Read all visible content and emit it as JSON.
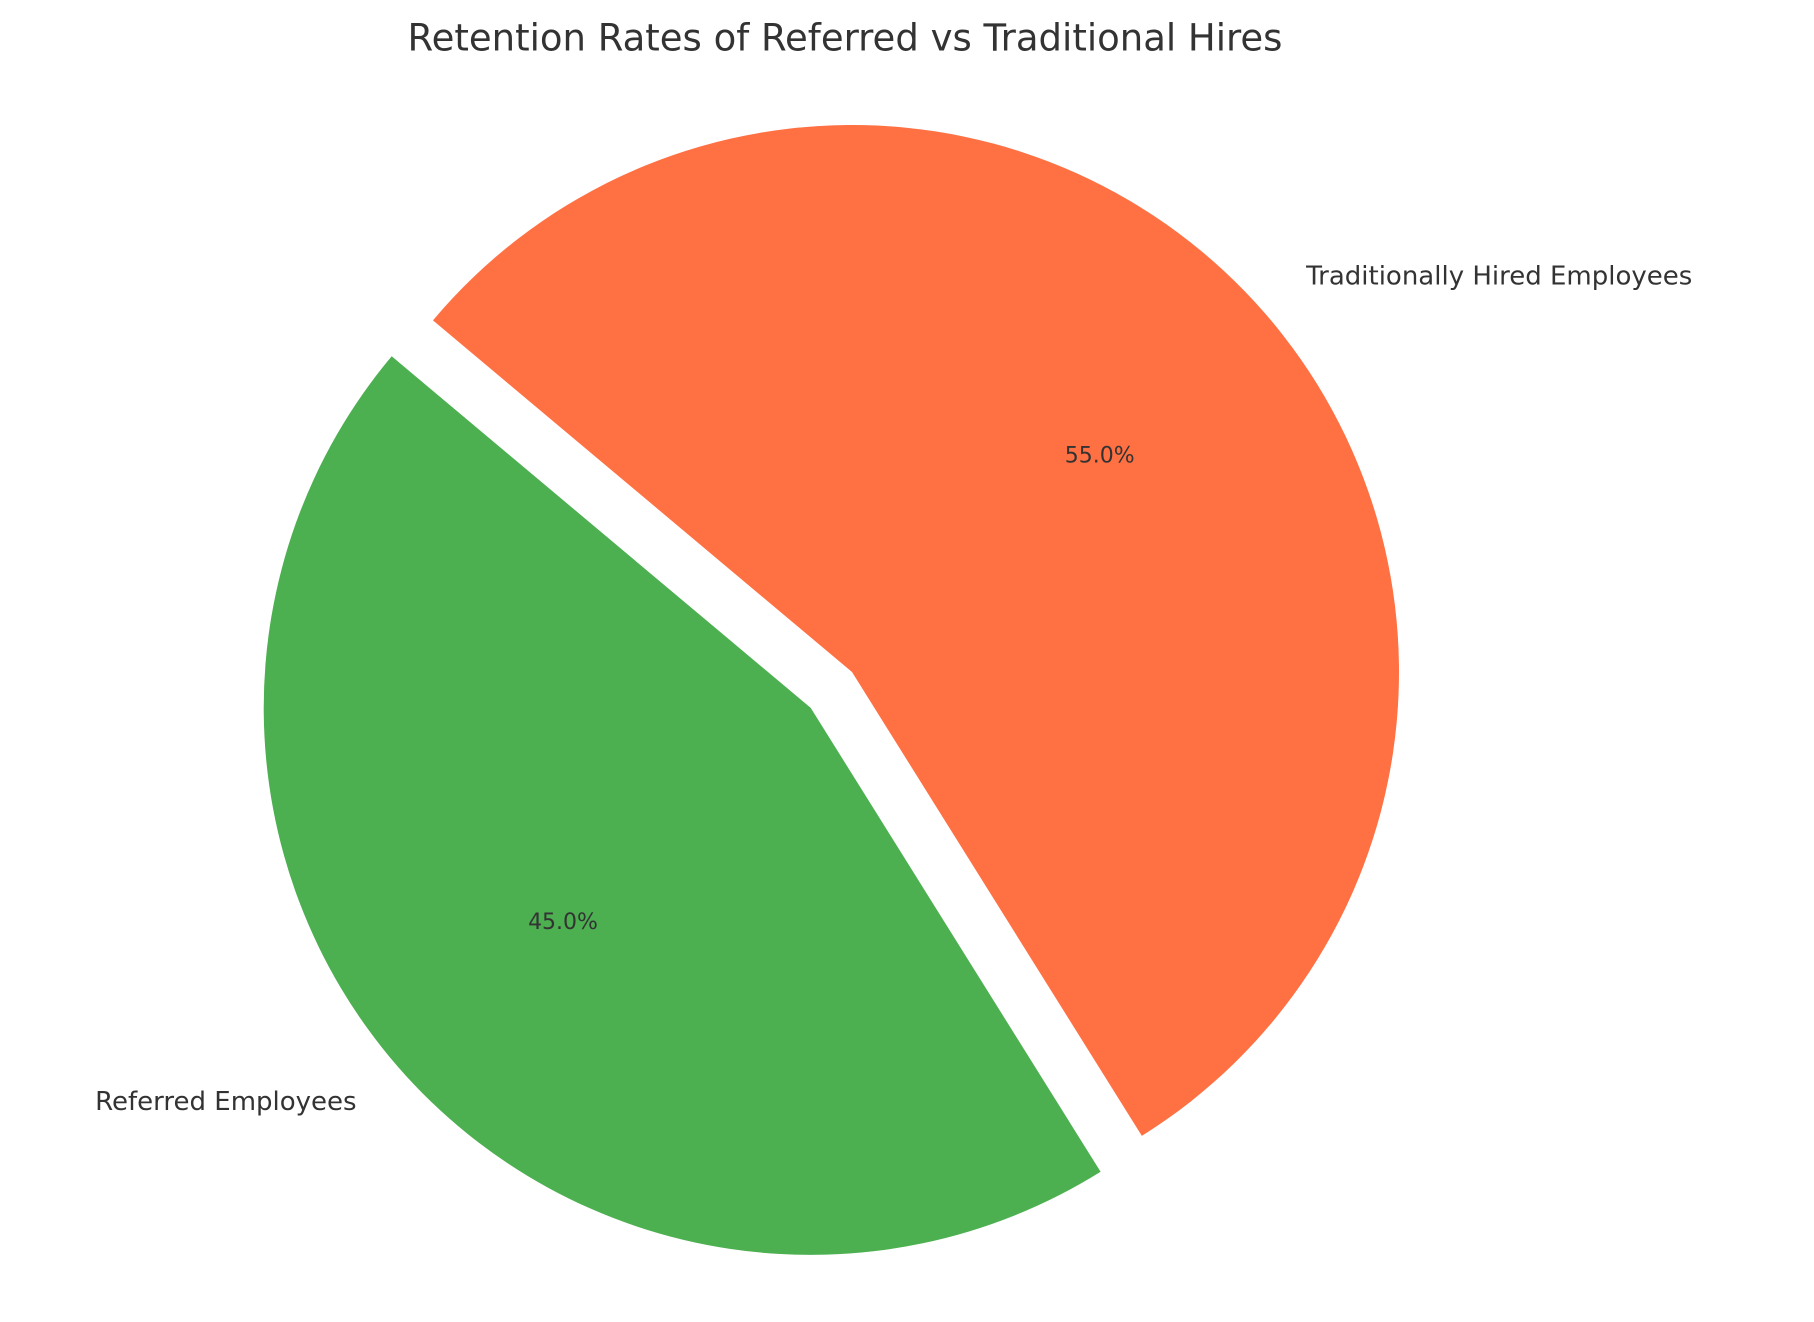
{
  "chart_data": {
    "type": "pie",
    "title": "Retention Rates of Referred vs Traditional Hires",
    "categories": [
      "Referred Employees",
      "Traditionally Hired Employees"
    ],
    "values": [
      45,
      55
    ],
    "value_labels": [
      "45.0%",
      "55.0%"
    ],
    "colors": [
      "#4caf50",
      "#ff7043"
    ],
    "explode": [
      0.1,
      0
    ]
  }
}
